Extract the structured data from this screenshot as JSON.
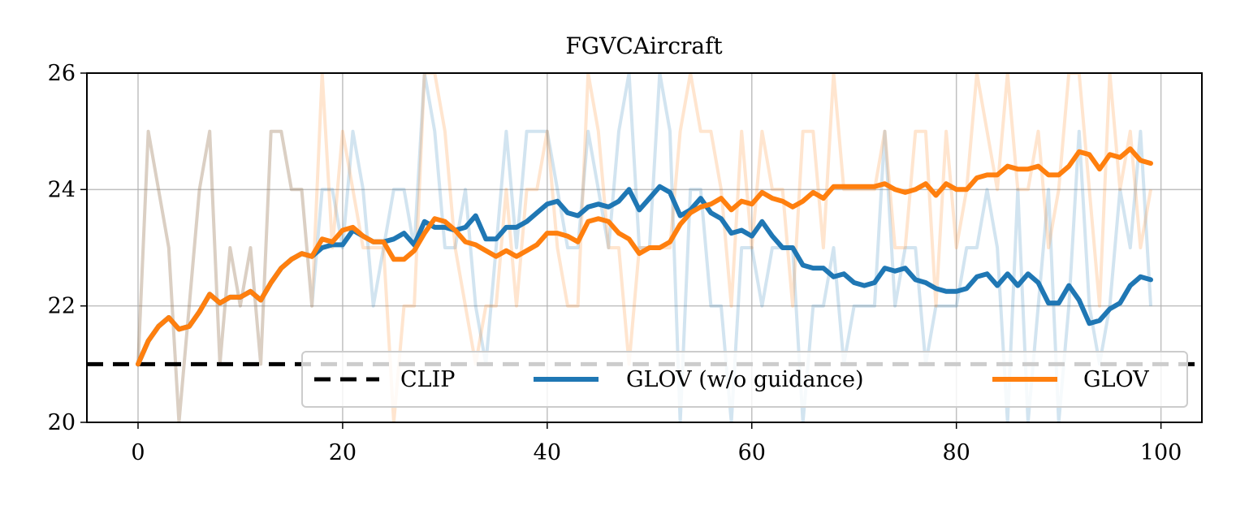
{
  "chart_data": {
    "type": "line",
    "title": "FGVCAircraft",
    "xlabel": "",
    "ylabel": "",
    "xlim": [
      -5,
      104
    ],
    "ylim": [
      20,
      26
    ],
    "x_ticks": [
      0,
      20,
      40,
      60,
      80,
      100
    ],
    "y_ticks": [
      20,
      22,
      24,
      26
    ],
    "grid": true,
    "legend_position": "lower-right",
    "baseline": {
      "name": "CLIP",
      "value": 21,
      "color": "#000000",
      "style": "dashed"
    },
    "series": [
      {
        "name": "GLOV (w/o guidance)",
        "color": "#1f77b4",
        "x": [
          0,
          1,
          2,
          3,
          4,
          5,
          6,
          7,
          8,
          9,
          10,
          11,
          12,
          13,
          14,
          15,
          16,
          17,
          18,
          19,
          20,
          21,
          22,
          23,
          24,
          25,
          26,
          27,
          28,
          29,
          30,
          31,
          32,
          33,
          34,
          35,
          36,
          37,
          38,
          39,
          40,
          41,
          42,
          43,
          44,
          45,
          46,
          47,
          48,
          49,
          50,
          51,
          52,
          53,
          54,
          55,
          56,
          57,
          58,
          59,
          60,
          61,
          62,
          63,
          64,
          65,
          66,
          67,
          68,
          69,
          70,
          71,
          72,
          73,
          74,
          75,
          76,
          77,
          78,
          79,
          80,
          81,
          82,
          83,
          84,
          85,
          86,
          87,
          88,
          89,
          90,
          91,
          92,
          93,
          94,
          95,
          96,
          97,
          98,
          99
        ],
        "values": [
          21.0,
          21.4,
          21.65,
          21.8,
          21.6,
          21.65,
          21.9,
          22.2,
          22.05,
          22.15,
          22.15,
          22.25,
          22.1,
          22.4,
          22.65,
          22.8,
          22.9,
          22.85,
          23.0,
          23.05,
          23.05,
          23.3,
          23.2,
          23.1,
          23.1,
          23.15,
          23.25,
          23.05,
          23.45,
          23.35,
          23.35,
          23.3,
          23.35,
          23.55,
          23.15,
          23.15,
          23.35,
          23.35,
          23.45,
          23.6,
          23.75,
          23.8,
          23.6,
          23.55,
          23.7,
          23.75,
          23.7,
          23.8,
          24.0,
          23.65,
          23.85,
          24.05,
          23.95,
          23.55,
          23.65,
          23.85,
          23.6,
          23.5,
          23.25,
          23.3,
          23.2,
          23.45,
          23.2,
          23.0,
          23.0,
          22.7,
          22.65,
          22.65,
          22.5,
          22.55,
          22.4,
          22.35,
          22.4,
          22.65,
          22.6,
          22.65,
          22.45,
          22.4,
          22.3,
          22.25,
          22.25,
          22.3,
          22.5,
          22.55,
          22.35,
          22.55,
          22.35,
          22.55,
          22.4,
          22.05,
          22.05,
          22.35,
          22.1,
          21.7,
          21.75,
          21.95,
          22.05,
          22.35,
          22.5,
          22.45
        ],
        "raw_values": [
          21,
          25,
          24,
          23,
          20,
          22,
          24,
          25,
          21,
          23,
          22,
          23,
          21,
          25,
          25,
          24,
          24,
          22,
          24,
          24,
          23,
          25,
          24,
          22,
          23,
          24,
          24,
          23,
          26,
          25,
          23,
          23,
          24,
          22,
          21,
          23,
          25,
          23,
          25,
          25,
          25,
          24,
          23,
          23,
          25,
          24,
          23,
          25,
          26,
          23,
          23,
          26,
          25,
          20,
          24,
          24,
          22,
          22,
          20,
          23,
          23,
          22,
          23,
          23,
          23,
          20,
          22,
          22,
          23,
          21,
          22,
          22,
          22,
          25,
          22,
          23,
          23,
          21,
          22,
          22,
          22,
          23,
          23,
          24,
          23,
          20,
          24,
          20,
          22,
          24,
          20,
          22,
          25,
          22,
          21,
          22,
          24,
          23,
          25,
          22
        ]
      },
      {
        "name": "GLOV",
        "color": "#ff7f0e",
        "x": [
          0,
          1,
          2,
          3,
          4,
          5,
          6,
          7,
          8,
          9,
          10,
          11,
          12,
          13,
          14,
          15,
          16,
          17,
          18,
          19,
          20,
          21,
          22,
          23,
          24,
          25,
          26,
          27,
          28,
          29,
          30,
          31,
          32,
          33,
          34,
          35,
          36,
          37,
          38,
          39,
          40,
          41,
          42,
          43,
          44,
          45,
          46,
          47,
          48,
          49,
          50,
          51,
          52,
          53,
          54,
          55,
          56,
          57,
          58,
          59,
          60,
          61,
          62,
          63,
          64,
          65,
          66,
          67,
          68,
          69,
          70,
          71,
          72,
          73,
          74,
          75,
          76,
          77,
          78,
          79,
          80,
          81,
          82,
          83,
          84,
          85,
          86,
          87,
          88,
          89,
          90,
          91,
          92,
          93,
          94,
          95,
          96,
          97,
          98,
          99
        ],
        "values": [
          21.0,
          21.4,
          21.65,
          21.8,
          21.6,
          21.65,
          21.9,
          22.2,
          22.05,
          22.15,
          22.15,
          22.25,
          22.1,
          22.4,
          22.65,
          22.8,
          22.9,
          22.85,
          23.15,
          23.1,
          23.3,
          23.35,
          23.2,
          23.1,
          23.1,
          22.8,
          22.8,
          22.95,
          23.25,
          23.5,
          23.45,
          23.3,
          23.1,
          23.05,
          22.95,
          22.85,
          22.95,
          22.85,
          22.95,
          23.05,
          23.25,
          23.25,
          23.2,
          23.1,
          23.45,
          23.5,
          23.45,
          23.25,
          23.15,
          22.9,
          23.0,
          23.0,
          23.1,
          23.4,
          23.6,
          23.7,
          23.75,
          23.85,
          23.65,
          23.8,
          23.75,
          23.95,
          23.85,
          23.8,
          23.7,
          23.8,
          23.95,
          23.85,
          24.05,
          24.05,
          24.05,
          24.05,
          24.05,
          24.1,
          24.0,
          23.95,
          24.0,
          24.1,
          23.9,
          24.1,
          24.0,
          24.0,
          24.2,
          24.25,
          24.25,
          24.4,
          24.35,
          24.35,
          24.4,
          24.25,
          24.25,
          24.4,
          24.65,
          24.6,
          24.35,
          24.6,
          24.55,
          24.7,
          24.5,
          24.45
        ],
        "raw_values": [
          21,
          25,
          24,
          23,
          20,
          22,
          24,
          25,
          21,
          23,
          22,
          23,
          21,
          25,
          25,
          24,
          24,
          22,
          26,
          23,
          25,
          24,
          23,
          23,
          23,
          20,
          22,
          22,
          26,
          26,
          25,
          23,
          22,
          21,
          22,
          22,
          24,
          22,
          24,
          24,
          25,
          23,
          22,
          22,
          26,
          25,
          23,
          23,
          21,
          23,
          23,
          23,
          23,
          25,
          26,
          25,
          25,
          24,
          22,
          25,
          23,
          25,
          24,
          24,
          22,
          25,
          25,
          23,
          26,
          24,
          24,
          24,
          24,
          25,
          23,
          23,
          25,
          25,
          22,
          25,
          23,
          24,
          26,
          25,
          24,
          26,
          24,
          24,
          25,
          23,
          24,
          26,
          26,
          24,
          22,
          26,
          24,
          25,
          23,
          24
        ]
      }
    ]
  }
}
